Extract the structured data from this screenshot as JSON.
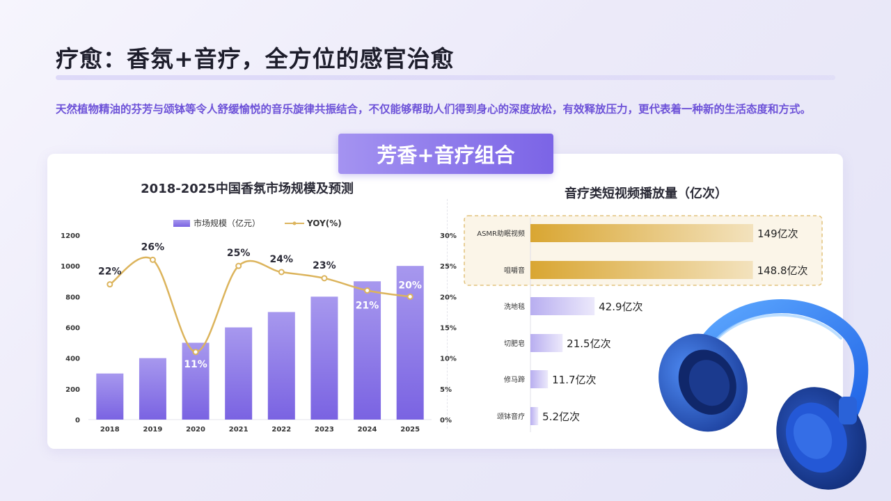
{
  "title": "疗愈：香氛+音疗，全方位的感官治愈",
  "intro": "天然植物精油的芬芳与颂钵等令人舒缓愉悦的音乐旋律共振结合，不仅能够帮助人们得到身心的深度放松，有效释放压力，更代表着一种新的生活态度和方式。",
  "badge": "芳香+音疗组合",
  "icon": "headphones-icon",
  "chart_data": [
    {
      "type": "bar",
      "title": "2018-2025中国香氛市场规模及预测",
      "categories": [
        "2018",
        "2019",
        "2020",
        "2021",
        "2022",
        "2023",
        "2024",
        "2025"
      ],
      "series": [
        {
          "name": "市场规模（亿元）",
          "type": "bar",
          "axis": "left",
          "values": [
            300,
            400,
            500,
            600,
            700,
            800,
            900,
            1000
          ],
          "color": "#7a63e2"
        },
        {
          "name": "YOY(%)",
          "type": "line",
          "axis": "right",
          "values": [
            22,
            26,
            11,
            25,
            24,
            23,
            21,
            20
          ],
          "color": "#dcb45c"
        }
      ],
      "point_labels": [
        "22%",
        "26%",
        "11%",
        "25%",
        "24%",
        "23%",
        "21%",
        "20%"
      ],
      "y_left": {
        "range": [
          0,
          1200
        ],
        "ticks": [
          "0",
          "200",
          "400",
          "600",
          "800",
          "1000",
          "1200"
        ]
      },
      "y_right": {
        "range": [
          0,
          30
        ],
        "ticks": [
          "0%",
          "5%",
          "10%",
          "15%",
          "20%",
          "25%",
          "30%"
        ]
      },
      "legend": "top-center",
      "grid": false
    },
    {
      "type": "bar",
      "orientation": "horizontal",
      "title": "音疗类短视频播放量（亿次）",
      "categories": [
        "ASMR助眠视频",
        "咀嚼音",
        "洗地毯",
        "切肥皂",
        "修马蹄",
        "颂钵音疗"
      ],
      "values": [
        149,
        148.8,
        42.9,
        21.5,
        11.7,
        5.2
      ],
      "labels": [
        "149亿次",
        "148.8亿次",
        "42.9亿次",
        "21.5亿次",
        "11.7亿次",
        "5.2亿次"
      ],
      "highlighted": [
        "ASMR助眠视频",
        "咀嚼音"
      ],
      "colors": {
        "highlight": "#d9a632",
        "normal": "#b8aef0",
        "highlight_box": "#e2c27a"
      }
    }
  ]
}
